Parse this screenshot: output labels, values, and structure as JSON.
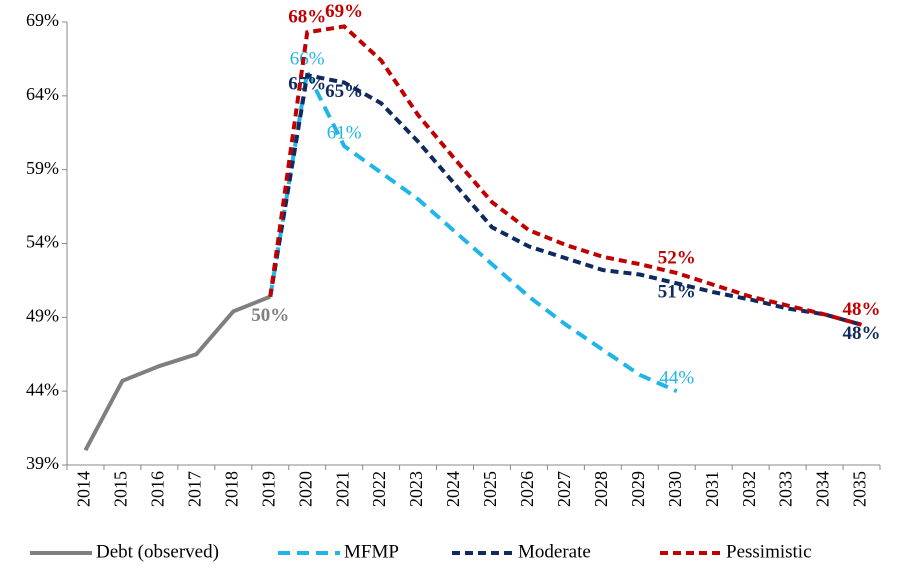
{
  "chart_data": {
    "type": "line",
    "categories": [
      "2014",
      "2015",
      "2016",
      "2017",
      "2018",
      "2019",
      "2020",
      "2021",
      "2022",
      "2023",
      "2024",
      "2025",
      "2026",
      "2027",
      "2028",
      "2029",
      "2030",
      "2031",
      "2032",
      "2033",
      "2034",
      "2035"
    ],
    "ylim": [
      39,
      69
    ],
    "yticks": [
      {
        "value": 39,
        "label": "39%"
      },
      {
        "value": 44,
        "label": "44%"
      },
      {
        "value": 49,
        "label": "49%"
      },
      {
        "value": 54,
        "label": "54%"
      },
      {
        "value": 59,
        "label": "59%"
      },
      {
        "value": 64,
        "label": "64%"
      },
      {
        "value": 69,
        "label": "69%"
      }
    ],
    "legend": "bottom",
    "series": [
      {
        "name": "Debt (observed)",
        "color": "#7f7f7f",
        "values": [
          40.0,
          44.7,
          45.7,
          46.5,
          49.4,
          50.4,
          null,
          null,
          null,
          null,
          null,
          null,
          null,
          null,
          null,
          null,
          null,
          null,
          null,
          null,
          null,
          null
        ],
        "value_labels": [
          null,
          null,
          null,
          null,
          null,
          "50%",
          null,
          null,
          null,
          null,
          null,
          null,
          null,
          null,
          null,
          null,
          null,
          null,
          null,
          null,
          null,
          null
        ]
      },
      {
        "name": "MFMP",
        "color": "#1fb5e8",
        "values": [
          null,
          null,
          null,
          null,
          null,
          50.4,
          65.6,
          60.6,
          58.8,
          57.0,
          54.8,
          52.6,
          50.4,
          48.5,
          46.8,
          45.1,
          44.0,
          null,
          null,
          null,
          null,
          null
        ],
        "value_labels": [
          null,
          null,
          null,
          null,
          null,
          null,
          "66%",
          "61%",
          null,
          null,
          null,
          null,
          null,
          null,
          null,
          null,
          "44%",
          null,
          null,
          null,
          null,
          null
        ]
      },
      {
        "name": "Moderate",
        "color": "#0f2a5e",
        "values": [
          null,
          null,
          null,
          null,
          null,
          50.4,
          65.4,
          64.9,
          63.5,
          60.9,
          58.0,
          55.1,
          53.8,
          53.0,
          52.2,
          51.9,
          51.3,
          50.7,
          50.2,
          49.6,
          49.2,
          48.5
        ],
        "value_labels": [
          null,
          null,
          null,
          null,
          null,
          null,
          "65%",
          "65%",
          null,
          null,
          null,
          null,
          null,
          null,
          null,
          null,
          "51%",
          null,
          null,
          null,
          null,
          "48%"
        ]
      },
      {
        "name": "Pessimistic",
        "color": "#c00000",
        "values": [
          null,
          null,
          null,
          null,
          null,
          50.4,
          68.3,
          68.7,
          66.4,
          62.7,
          59.7,
          56.8,
          54.9,
          53.9,
          53.1,
          52.6,
          52.0,
          51.2,
          50.4,
          49.8,
          49.2,
          48.5
        ],
        "value_labels": [
          null,
          null,
          null,
          null,
          null,
          null,
          "68%",
          "69%",
          null,
          null,
          null,
          null,
          null,
          null,
          null,
          null,
          "52%",
          null,
          null,
          null,
          null,
          "48%"
        ]
      }
    ]
  }
}
